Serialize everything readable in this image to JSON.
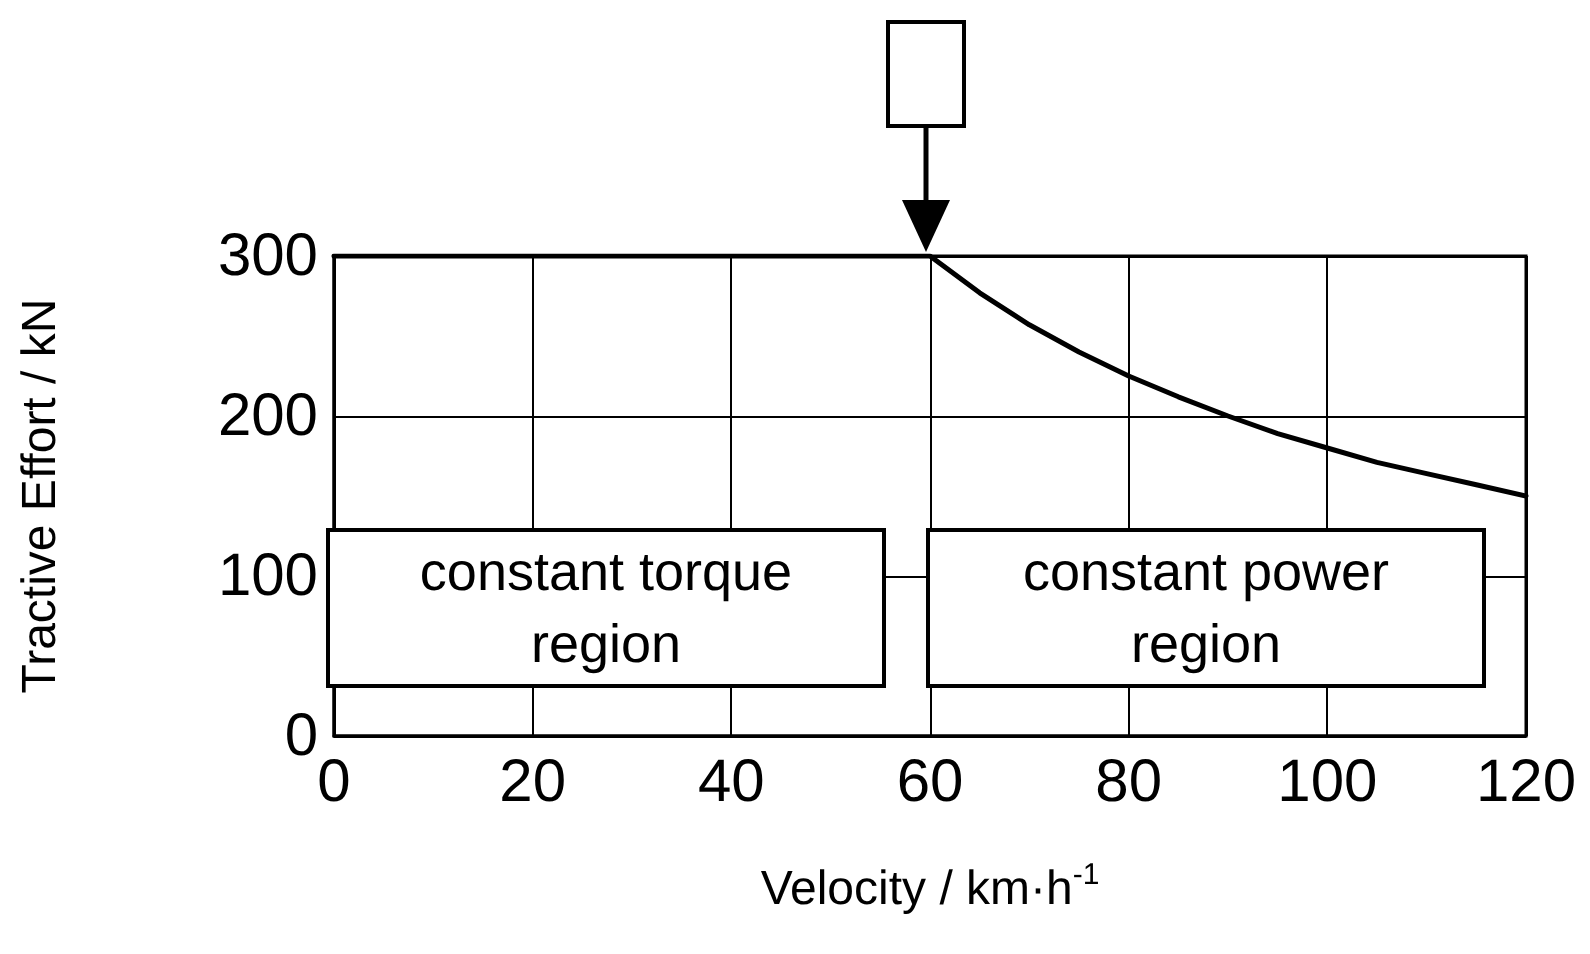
{
  "chart_data": {
    "type": "line",
    "xlabel": "Velocity / km·h$^{-1}$",
    "ylabel": "Tractive Effort / kN",
    "x": [
      0,
      60,
      65,
      70,
      75,
      80,
      85,
      90,
      95,
      100,
      105,
      110,
      115,
      120
    ],
    "values": [
      300,
      300,
      277,
      257,
      240,
      225,
      212,
      200,
      189,
      180,
      171,
      164,
      157,
      150
    ],
    "color": "#000000",
    "marker": "none",
    "line_style": "solid",
    "xlim": [
      0,
      120
    ],
    "xticks": [
      0,
      20,
      40,
      60,
      80,
      100,
      120
    ],
    "ylim": [
      0,
      300
    ],
    "yticks": [
      0,
      100,
      200,
      300
    ],
    "grid": true,
    "annotations": [
      "constant torque region",
      "constant power region"
    ]
  }
}
